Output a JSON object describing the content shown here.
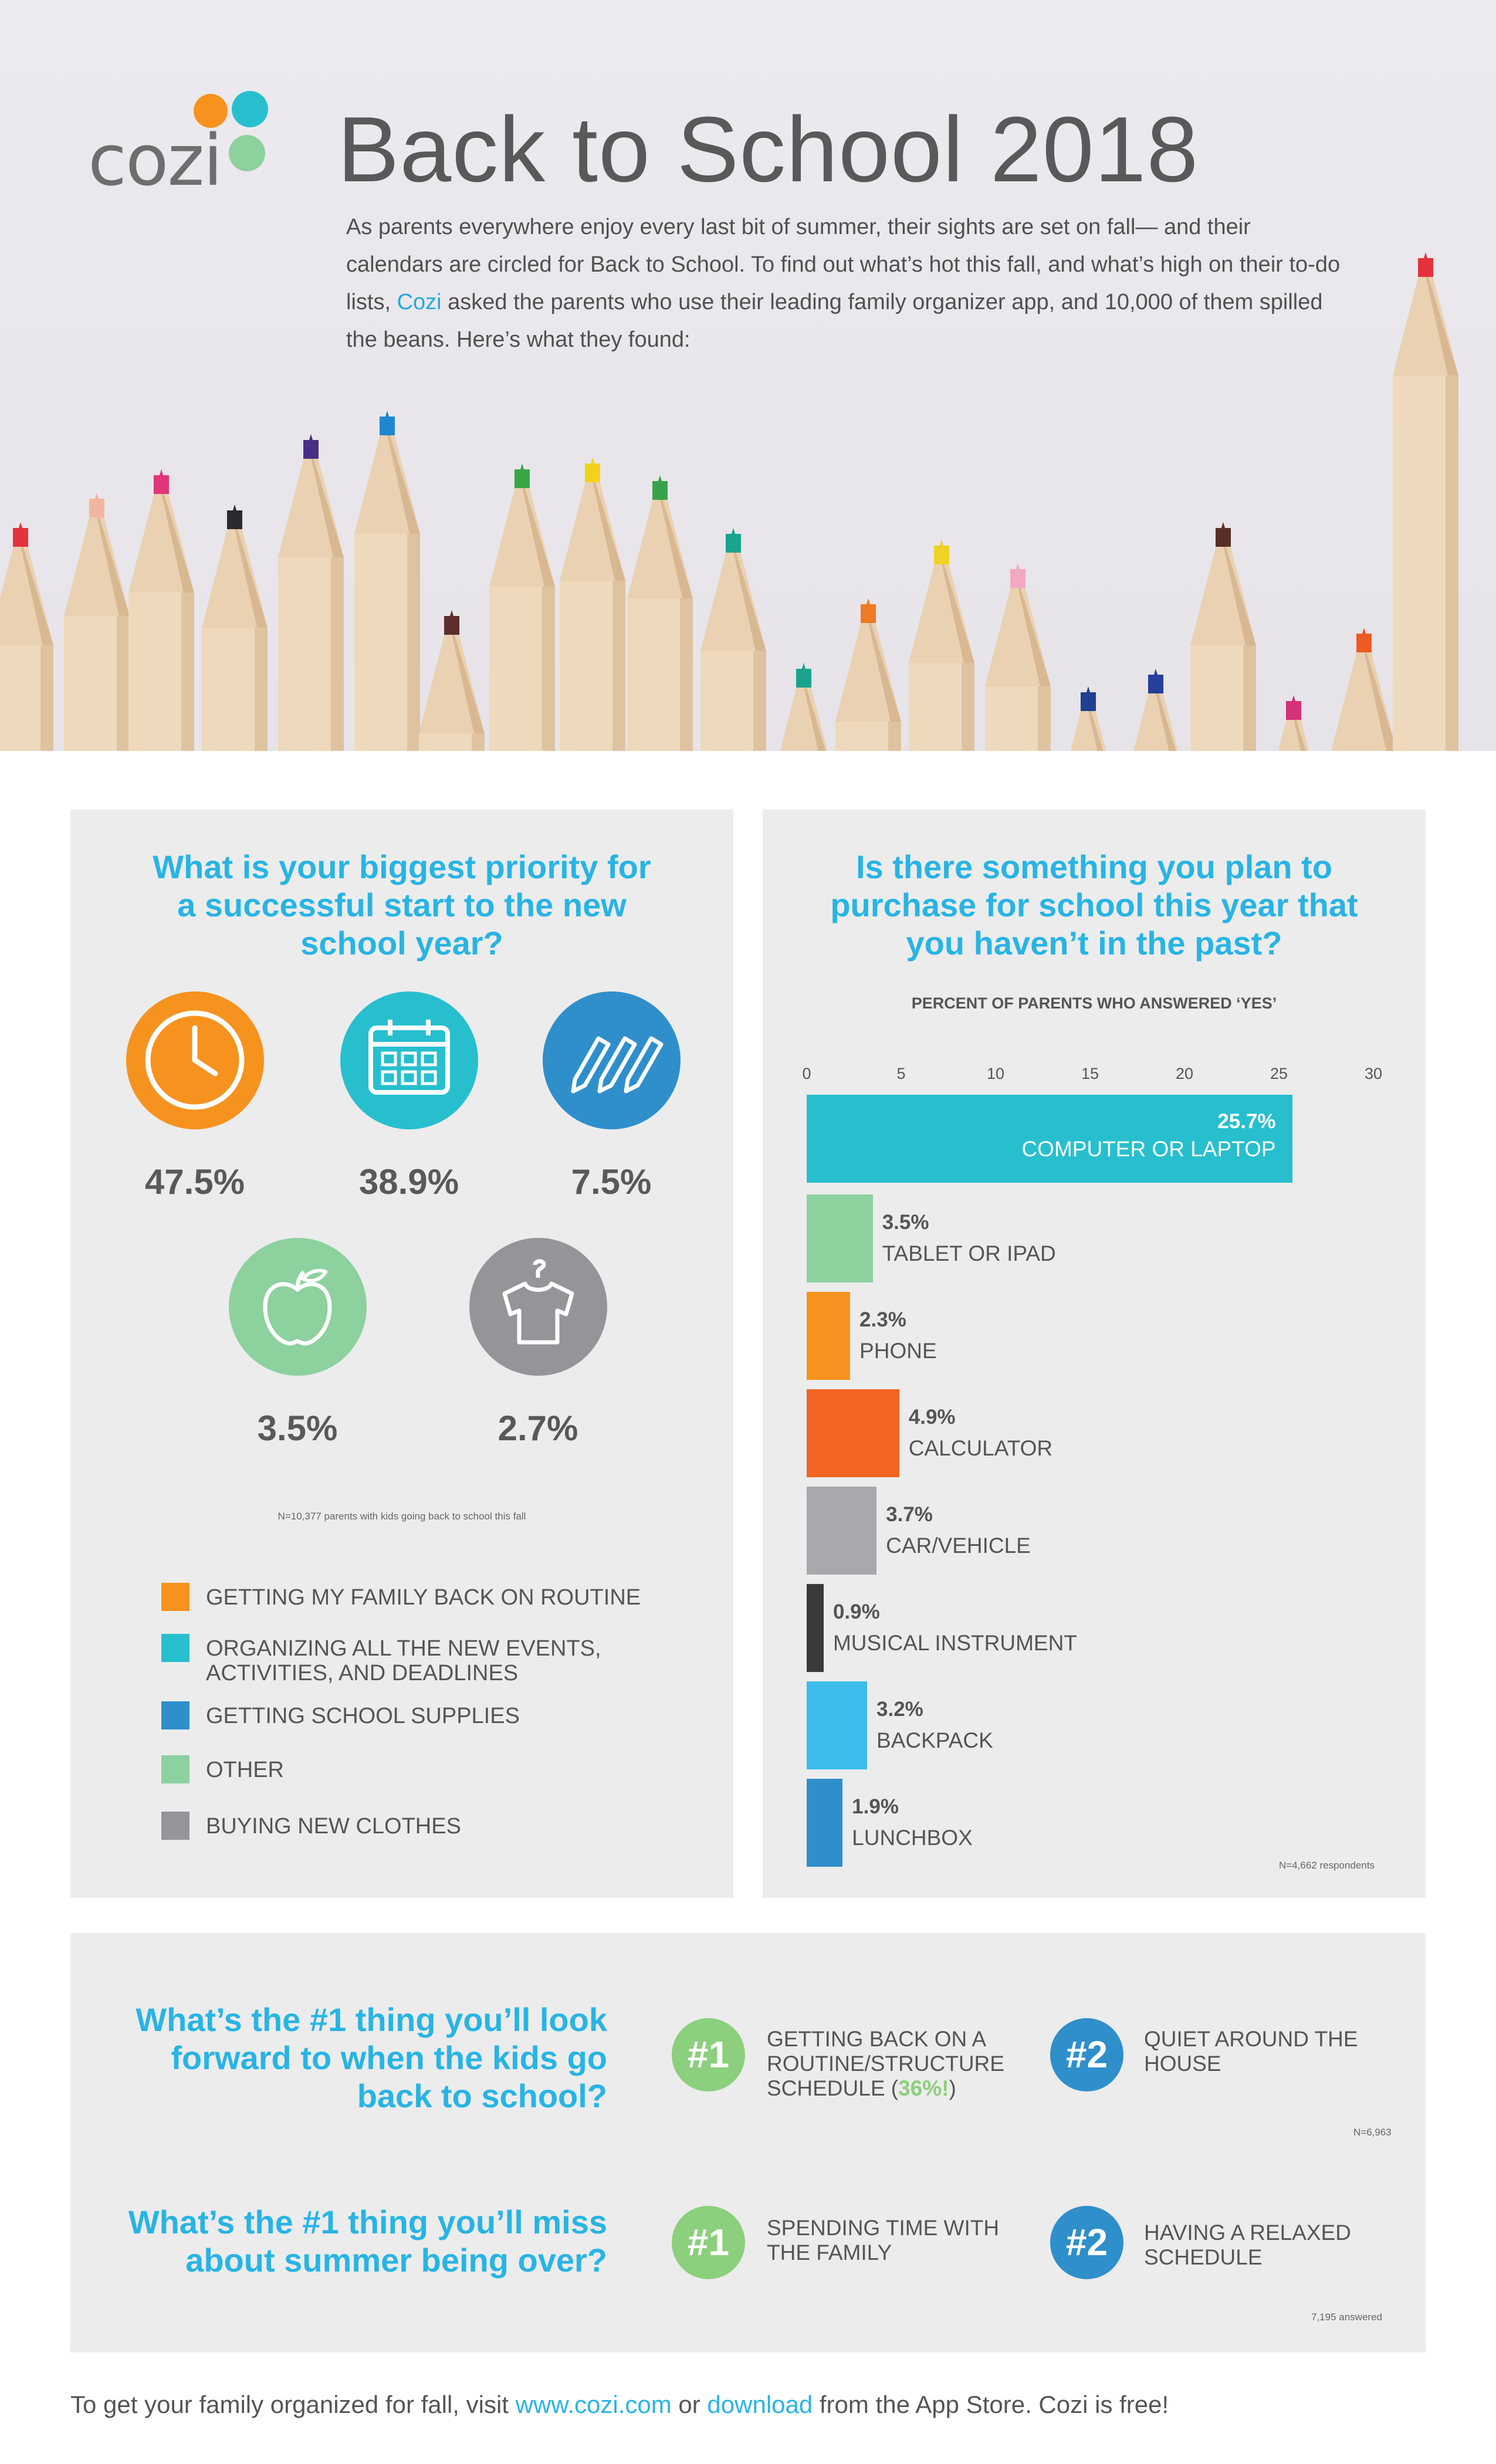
{
  "header": {
    "logo_text": "cozi",
    "title": "Back to School 2018",
    "intro_before": "As parents everywhere enjoy every last bit of summer, their sights are set on fall— and their calendars are circled for Back to School. To find out what’s hot this fall, and what’s high on their to-do lists, ",
    "intro_link": "Cozi",
    "intro_after": " asked the parents who use their leading family organizer app, and 10,000 of them spilled the beans. Here’s what they found:"
  },
  "priority": {
    "question": "What is your biggest priority for a successful start to the new school year?",
    "items": [
      {
        "value": "47.5%",
        "label": "GETTING MY FAMILY BACK ON ROUTINE",
        "color": "#f6921e",
        "icon": "clock-icon"
      },
      {
        "value": "38.9%",
        "label": "ORGANIZING ALL THE NEW EVENTS, ACTIVITIES, AND DEADLINES",
        "color": "#27bfce",
        "icon": "calendar-icon"
      },
      {
        "value": "7.5%",
        "label": "GETTING SCHOOL SUPPLIES",
        "color": "#2f8fcb",
        "icon": "pencils-icon"
      },
      {
        "value": "3.5%",
        "label": "OTHER",
        "color": "#8dd19f",
        "icon": "apple-icon"
      },
      {
        "value": "2.7%",
        "label": "BUYING NEW CLOTHES",
        "color": "#939598",
        "icon": "shirt-icon"
      }
    ],
    "note": "N=10,377 parents with kids going back to school this fall"
  },
  "purchase": {
    "question": "Is there something you plan to purchase for school this year that you haven’t in the past?",
    "note": "N=4,662 respondents"
  },
  "chart_data": {
    "type": "bar",
    "orientation": "horizontal",
    "title": "PERCENT OF PARENTS WHO ANSWERED ‘YES’",
    "xlim": [
      0,
      30
    ],
    "ticks": [
      0,
      5,
      10,
      15,
      20,
      25,
      30
    ],
    "categories": [
      "COMPUTER OR LAPTOP",
      "TABLET OR IPAD",
      "PHONE",
      "CALCULATOR",
      "CAR/VEHICLE",
      "MUSICAL INSTRUMENT",
      "BACKPACK",
      "LUNCHBOX"
    ],
    "values": [
      25.7,
      3.5,
      2.3,
      4.9,
      3.7,
      0.9,
      3.2,
      1.9
    ],
    "value_labels": [
      "25.7%",
      "3.5%",
      "2.3%",
      "4.9%",
      "3.7%",
      "0.9%",
      "3.2%",
      "1.9%"
    ],
    "colors": [
      "#27bfce",
      "#8dd19f",
      "#f6921e",
      "#f26522",
      "#a7a9ac",
      "#3a3a3c",
      "#3bbcea",
      "#2f8fcb"
    ]
  },
  "forward": {
    "question": "What’s the #1 thing you’ll look forward to when the kids go back to school?",
    "first_badge": "#1",
    "first_answer": "GETTING BACK ON A ROUTINE/STRUCTURE SCHEDULE (",
    "first_highlight": "36%!",
    "first_answer_end": ")",
    "second_badge": "#2",
    "second_answer": "QUIET AROUND THE HOUSE",
    "note": "N=6,963"
  },
  "miss": {
    "question": "What’s the #1 thing you’ll miss about summer being over?",
    "first_badge": "#1",
    "first_answer": "SPENDING TIME WITH THE FAMILY",
    "second_badge": "#2",
    "second_answer": "HAVING A RELAXED SCHEDULE",
    "note": "7,195 answered"
  },
  "footer": {
    "before": "To get your family organized for fall, visit ",
    "link1": "www.cozi.com",
    "middle": " or ",
    "link2": "download",
    "after": " from the App Store. Cozi is free!"
  },
  "colors": {
    "accent_blue": "#28b4e4",
    "badge_green": "#8ccf7d",
    "badge_blue": "#2f8fcb",
    "panel_bg": "#ececec"
  }
}
